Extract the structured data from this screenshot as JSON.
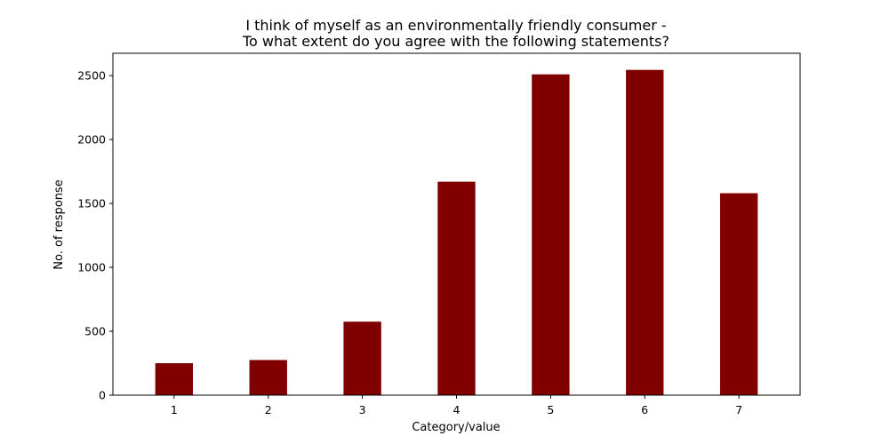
{
  "chart_data": {
    "type": "bar",
    "title_lines": [
      "I think of myself as an environmentally friendly consumer -",
      "To what extent do you agree with the following statements?"
    ],
    "xlabel": "Category/value",
    "ylabel": "No. of response",
    "categories": [
      "1",
      "2",
      "3",
      "4",
      "5",
      "6",
      "7"
    ],
    "values": [
      250,
      275,
      575,
      1670,
      2510,
      2545,
      1580
    ],
    "ylim": [
      0,
      2675
    ],
    "yticks": [
      0,
      500,
      1000,
      1500,
      2000,
      2500
    ],
    "bar_color": "#800000",
    "grid": false,
    "legend": "none"
  }
}
